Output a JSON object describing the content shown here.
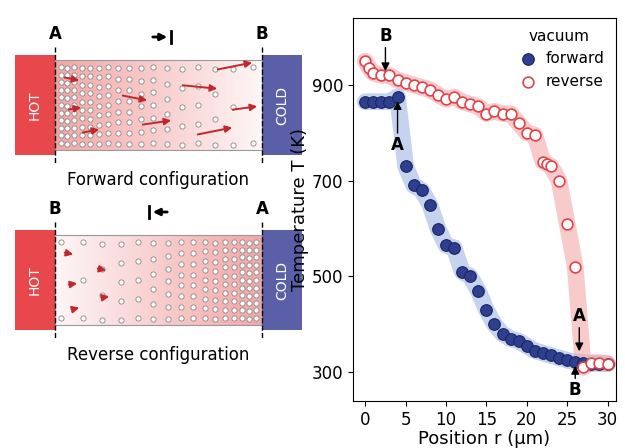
{
  "diagram": {
    "panels": [
      {
        "caption": "Forward configuration",
        "left_end": "A",
        "right_end": "B",
        "hot": "HOT",
        "cold": "COLD"
      },
      {
        "caption": "Reverse configuration",
        "left_end": "B",
        "right_end": "A",
        "hot": "HOT",
        "cold": "COLD"
      }
    ]
  },
  "chart_data": {
    "type": "scatter",
    "xlabel": "Position r (µm)",
    "ylabel": "Temperature T (K)",
    "xlim": [
      -1.5,
      31
    ],
    "ylim": [
      240,
      1040
    ],
    "xticks": [
      0,
      5,
      10,
      15,
      20,
      25,
      30
    ],
    "yticks": [
      300,
      500,
      700,
      900
    ],
    "legend": "upper right",
    "legend_title": "vacuum",
    "series": [
      {
        "name": "forward",
        "color": "#2e3f8f",
        "marker": "circle",
        "x": [
          0,
          1,
          2,
          3,
          4,
          5,
          6,
          7,
          8,
          9,
          10,
          11,
          12,
          13,
          14,
          15,
          16,
          17,
          18,
          19,
          20,
          21,
          22,
          23,
          24,
          25,
          26,
          27,
          28,
          29,
          30
        ],
        "values": [
          865,
          865,
          865,
          865,
          875,
          730,
          690,
          680,
          650,
          600,
          565,
          560,
          510,
          500,
          470,
          430,
          400,
          380,
          370,
          365,
          355,
          345,
          340,
          335,
          330,
          325,
          322,
          320,
          318,
          318,
          318
        ]
      },
      {
        "name": "reverse",
        "color": "#e0444a",
        "marker": "open_circle",
        "x": [
          0,
          0.5,
          1,
          2,
          3,
          4,
          5,
          6,
          7,
          8,
          9,
          10,
          11,
          12,
          13,
          14,
          15,
          16,
          17,
          18,
          19,
          20,
          21,
          22,
          22.5,
          23,
          24,
          25,
          26,
          27,
          28,
          29,
          30
        ],
        "values": [
          950,
          935,
          925,
          920,
          920,
          910,
          905,
          900,
          895,
          890,
          880,
          870,
          875,
          865,
          860,
          855,
          840,
          845,
          840,
          840,
          820,
          800,
          795,
          740,
          735,
          730,
          700,
          610,
          520,
          310,
          320,
          320,
          318
        ]
      }
    ],
    "annotations": [
      {
        "text": "A",
        "x": 4,
        "y": 875
      },
      {
        "text": "B",
        "x": 2.5,
        "y": 920
      },
      {
        "text": "A",
        "x": 26.5,
        "y": 335
      },
      {
        "text": "B",
        "x": 26,
        "y": 322
      }
    ]
  }
}
